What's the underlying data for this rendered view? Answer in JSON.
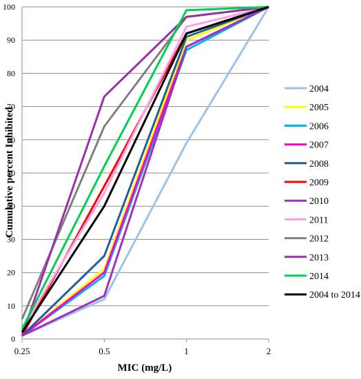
{
  "chart_data": {
    "type": "line",
    "title": "",
    "xlabel": "MIC (mg/L)",
    "ylabel": "Cumulative percent Inhibited",
    "x_categories": [
      "0.25",
      "0.5",
      "1",
      "2"
    ],
    "ylim": [
      0,
      100
    ],
    "y_ticks": [
      "0",
      "10",
      "20",
      "30",
      "40",
      "50",
      "60",
      "70",
      "80",
      "90",
      "100"
    ],
    "grid": "horizontal",
    "legend_position": "right",
    "series": [
      {
        "name": "2004",
        "color": "#9DC3E6",
        "values": [
          1,
          12,
          59,
          100
        ]
      },
      {
        "name": "2005",
        "color": "#FFFF00",
        "values": [
          1,
          21,
          90,
          100
        ]
      },
      {
        "name": "2006",
        "color": "#00B0F0",
        "values": [
          1,
          19,
          87,
          100
        ]
      },
      {
        "name": "2007",
        "color": "#FF00CC",
        "values": [
          1,
          20,
          88,
          100
        ]
      },
      {
        "name": "2008",
        "color": "#1F5F9F",
        "values": [
          1,
          25,
          91,
          100
        ]
      },
      {
        "name": "2009",
        "color": "#FF0000",
        "values": [
          1,
          46,
          92,
          100
        ]
      },
      {
        "name": "2010",
        "color": "#A030C0",
        "values": [
          1,
          13,
          88,
          100
        ]
      },
      {
        "name": "2011",
        "color": "#FF9EEA",
        "values": [
          3,
          44,
          94,
          100
        ]
      },
      {
        "name": "2012",
        "color": "#808080",
        "values": [
          6,
          64,
          97,
          100
        ]
      },
      {
        "name": "2013",
        "color": "#9B30A8",
        "values": [
          1,
          73,
          97,
          100
        ]
      },
      {
        "name": "2014",
        "color": "#00D050",
        "values": [
          3,
          52,
          99,
          100
        ]
      },
      {
        "name": "2004 to 2014",
        "color": "#000000",
        "values": [
          2,
          40,
          92,
          100
        ]
      }
    ]
  }
}
